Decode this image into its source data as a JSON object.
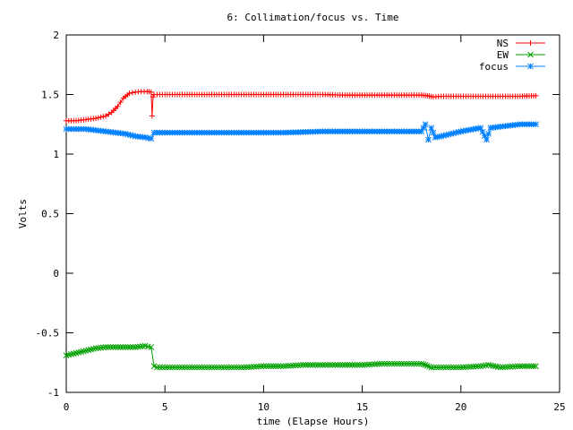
{
  "chart_data": {
    "type": "line",
    "title": "6: Collimation/focus vs. Time",
    "xlabel": "time (Elapse Hours)",
    "ylabel": "Volts",
    "xlim": [
      0,
      25
    ],
    "ylim": [
      -1,
      2
    ],
    "x_ticks": [
      0,
      5,
      10,
      15,
      20,
      25
    ],
    "x_tick_labels": [
      "0",
      "5",
      "10",
      "15",
      "20",
      "25"
    ],
    "y_ticks": [
      -1,
      -0.5,
      0,
      0.5,
      1,
      1.5,
      2
    ],
    "y_tick_labels": [
      "-1",
      "-0.5",
      "0",
      "0.5",
      "1",
      "1.5",
      "2"
    ],
    "grid": false,
    "legend_position": "top-right",
    "series": [
      {
        "name": "NS",
        "color": "#ff0000",
        "marker": "plus",
        "x": [
          0,
          0.5,
          1,
          1.5,
          2,
          2.3,
          2.6,
          2.9,
          3.2,
          3.5,
          3.8,
          4.1,
          4.3,
          4.35,
          4.4,
          4.45,
          4.6,
          5,
          6,
          7,
          8,
          9,
          10,
          11,
          12,
          13,
          14,
          15,
          16,
          17,
          18,
          18.3,
          18.6,
          19,
          20,
          21,
          22,
          23,
          23.8
        ],
        "y": [
          1.28,
          1.28,
          1.29,
          1.3,
          1.32,
          1.35,
          1.4,
          1.47,
          1.51,
          1.52,
          1.525,
          1.525,
          1.52,
          1.32,
          1.48,
          1.5,
          1.5,
          1.5,
          1.5,
          1.5,
          1.5,
          1.5,
          1.5,
          1.5,
          1.5,
          1.5,
          1.495,
          1.495,
          1.495,
          1.495,
          1.495,
          1.49,
          1.48,
          1.485,
          1.485,
          1.485,
          1.485,
          1.485,
          1.49
        ]
      },
      {
        "name": "EW",
        "color": "#00a000",
        "marker": "x",
        "x": [
          0,
          0.5,
          1,
          1.5,
          2,
          2.5,
          3,
          3.5,
          4,
          4.3,
          4.45,
          4.6,
          5,
          6,
          7,
          8,
          9,
          10,
          11,
          12,
          13,
          14,
          15,
          16,
          17,
          18,
          18.2,
          18.5,
          19,
          20,
          21,
          21.4,
          22,
          23,
          23.8
        ],
        "y": [
          -0.69,
          -0.67,
          -0.65,
          -0.63,
          -0.62,
          -0.62,
          -0.62,
          -0.62,
          -0.61,
          -0.62,
          -0.78,
          -0.79,
          -0.79,
          -0.79,
          -0.79,
          -0.79,
          -0.79,
          -0.78,
          -0.78,
          -0.77,
          -0.77,
          -0.77,
          -0.77,
          -0.76,
          -0.76,
          -0.76,
          -0.77,
          -0.79,
          -0.79,
          -0.79,
          -0.78,
          -0.77,
          -0.79,
          -0.78,
          -0.78
        ]
      },
      {
        "name": "focus",
        "color": "#0080ff",
        "marker": "star",
        "x": [
          0,
          0.5,
          1,
          1.5,
          2,
          2.5,
          3,
          3.5,
          4,
          4.3,
          4.45,
          4.6,
          5,
          6,
          7,
          8,
          9,
          10,
          11,
          12,
          13,
          14,
          15,
          16,
          17,
          18,
          18.2,
          18.35,
          18.5,
          18.7,
          19,
          20,
          21,
          21.3,
          21.5,
          22,
          23,
          23.8
        ],
        "y": [
          1.21,
          1.21,
          1.21,
          1.2,
          1.19,
          1.18,
          1.17,
          1.15,
          1.14,
          1.13,
          1.18,
          1.18,
          1.18,
          1.18,
          1.18,
          1.18,
          1.18,
          1.18,
          1.18,
          1.185,
          1.19,
          1.19,
          1.19,
          1.19,
          1.19,
          1.19,
          1.25,
          1.12,
          1.22,
          1.14,
          1.15,
          1.19,
          1.22,
          1.12,
          1.22,
          1.23,
          1.25,
          1.25
        ]
      }
    ]
  }
}
